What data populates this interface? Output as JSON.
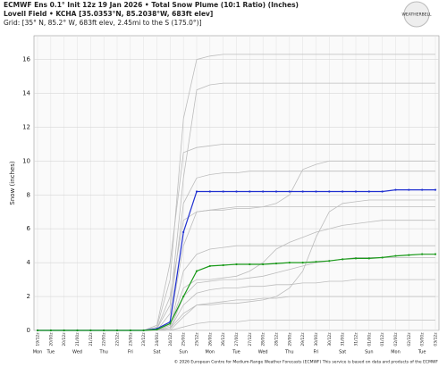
{
  "chart_data": {
    "type": "line",
    "title": "ECMWF Ens 0.1° Init 12z 19 Jan 2026 • Total Snow Plume (10:1 Ratio) (Inches)",
    "subtitle": "Lovell Field • KCHA [35.0353°N, 85.2038°W, 683ft elev]",
    "subtitle2": "Grid: [35° N, 85.2° W, 683ft elev, 2.45mi to the S (175.0°)]",
    "logo": "WEATHERBELL",
    "footer": "© 2026 European Centre for Medium-Range Weather Forecasts (ECMWF) This service is based on data and products of the ECMWF",
    "y_label": "Snow (inches)",
    "categories": [
      "19/12z",
      "20/00z",
      "20/12z",
      "21/00z",
      "21/12z",
      "22/00z",
      "22/12z",
      "23/00z",
      "23/12z",
      "24/00z",
      "24/12z",
      "25/00z",
      "25/12z",
      "26/00z",
      "26/12z",
      "27/00z",
      "27/12z",
      "28/00z",
      "28/12z",
      "29/00z",
      "29/12z",
      "30/00z",
      "30/12z",
      "31/00z",
      "31/12z",
      "01/00z",
      "01/12z",
      "02/00z",
      "02/12z",
      "03/00z",
      "03/12z"
    ],
    "day_labels": [
      "Mon",
      "Tue",
      null,
      "Wed",
      null,
      "Thu",
      null,
      "Fri",
      null,
      "Sat",
      null,
      "Sun",
      null,
      "Mon",
      null,
      "Tue",
      null,
      "Wed",
      null,
      "Thu",
      null,
      "Fri",
      null,
      "Sat",
      null,
      "Sun",
      null,
      "Mon",
      null,
      "Tue",
      null
    ],
    "ylim": [
      0,
      17.4
    ],
    "yticks": [
      0,
      2,
      4,
      6,
      8,
      10,
      12,
      14,
      16
    ],
    "grid": true,
    "series": [
      {
        "color": "#bdbdbd",
        "values": [
          0,
          0,
          0,
          0,
          0,
          0,
          0,
          0,
          0,
          0.2,
          3.0,
          12.5,
          16.0,
          16.2,
          16.3,
          16.3,
          16.3,
          16.3,
          16.3,
          16.3,
          16.3,
          16.3,
          16.3,
          16.3,
          16.3,
          16.3,
          16.3,
          16.3,
          16.3,
          16.3,
          16.3
        ]
      },
      {
        "color": "#bdbdbd",
        "values": [
          0,
          0,
          0,
          0,
          0,
          0,
          0,
          0,
          0,
          0.1,
          1.5,
          9.0,
          14.2,
          14.5,
          14.6,
          14.6,
          14.6,
          14.6,
          14.6,
          14.6,
          14.6,
          14.6,
          14.6,
          14.6,
          14.6,
          14.6,
          14.6,
          14.6,
          14.6,
          14.6,
          14.6
        ]
      },
      {
        "color": "#bdbdbd",
        "values": [
          0,
          0,
          0,
          0,
          0,
          0,
          0,
          0,
          0,
          0.3,
          4.0,
          10.5,
          10.8,
          10.9,
          11.0,
          11.0,
          11.0,
          11.0,
          11.0,
          11.0,
          11.0,
          11.0,
          11.0,
          11.0,
          11.0,
          11.0,
          11.0,
          11.0,
          11.0,
          11.0,
          11.0
        ]
      },
      {
        "color": "#bdbdbd",
        "values": [
          0,
          0,
          0,
          0,
          0,
          0,
          0,
          0,
          0,
          0.1,
          2.0,
          6.5,
          7.0,
          7.1,
          7.1,
          7.2,
          7.2,
          7.3,
          7.5,
          8.0,
          9.5,
          9.8,
          10.0,
          10.0,
          10.0,
          10.0,
          10.0,
          10.0,
          10.0,
          10.0,
          10.0
        ]
      },
      {
        "color": "#bdbdbd",
        "values": [
          0,
          0,
          0,
          0,
          0,
          0,
          0,
          0,
          0,
          0,
          1.0,
          7.5,
          9.0,
          9.2,
          9.3,
          9.3,
          9.4,
          9.4,
          9.4,
          9.4,
          9.4,
          9.4,
          9.4,
          9.4,
          9.4,
          9.4,
          9.4,
          9.4,
          9.4,
          9.4,
          9.4
        ]
      },
      {
        "color": "#bdbdbd",
        "values": [
          0,
          0,
          0,
          0,
          0,
          0,
          0,
          0,
          0,
          0,
          0.5,
          5.0,
          7.0,
          7.1,
          7.2,
          7.3,
          7.3,
          7.3,
          7.3,
          7.3,
          7.3,
          7.3,
          7.3,
          7.3,
          7.3,
          7.3,
          7.3,
          7.3,
          7.3,
          7.3,
          7.3
        ]
      },
      {
        "color": "#bdbdbd",
        "values": [
          0,
          0,
          0,
          0,
          0,
          0,
          0,
          0,
          0,
          0,
          0.3,
          2.5,
          3.0,
          3.0,
          3.1,
          3.2,
          3.5,
          4.0,
          4.8,
          5.2,
          5.5,
          5.8,
          6.0,
          6.2,
          6.3,
          6.4,
          6.5,
          6.5,
          6.5,
          6.5,
          6.5
        ]
      },
      {
        "color": "#bdbdbd",
        "values": [
          0,
          0,
          0,
          0,
          0,
          0,
          0,
          0,
          0,
          0,
          0.2,
          3.5,
          4.5,
          4.8,
          4.9,
          5.0,
          5.0,
          5.0,
          5.0,
          5.0,
          5.0,
          5.0,
          5.0,
          5.0,
          5.0,
          5.0,
          5.0,
          5.0,
          5.0,
          5.0,
          5.0
        ]
      },
      {
        "color": "#bdbdbd",
        "values": [
          0,
          0,
          0,
          0,
          0,
          0,
          0,
          0,
          0,
          0,
          0.1,
          2.0,
          2.8,
          2.9,
          3.0,
          3.0,
          3.1,
          3.2,
          3.4,
          3.6,
          3.8,
          4.0,
          4.1,
          4.2,
          4.3,
          4.3,
          4.3,
          4.3,
          4.3,
          4.3,
          4.3
        ]
      },
      {
        "color": "#bdbdbd",
        "values": [
          0,
          0,
          0,
          0,
          0,
          0,
          0,
          0,
          0,
          0,
          0.1,
          1.5,
          2.2,
          2.4,
          2.5,
          2.5,
          2.6,
          2.6,
          2.7,
          2.7,
          2.8,
          2.8,
          2.9,
          2.9,
          3.0,
          3.0,
          3.0,
          3.0,
          3.0,
          3.0,
          3.0
        ]
      },
      {
        "color": "#bdbdbd",
        "values": [
          0,
          0,
          0,
          0,
          0,
          0,
          0,
          0,
          0,
          0,
          0,
          0.8,
          1.5,
          1.6,
          1.7,
          1.8,
          1.8,
          1.9,
          1.9,
          2.0,
          2.0,
          2.0,
          2.0,
          2.0,
          2.0,
          2.0,
          2.0,
          2.0,
          2.0,
          2.0,
          2.0
        ]
      },
      {
        "color": "#bdbdbd",
        "values": [
          0,
          0,
          0,
          0,
          0,
          0,
          0,
          0,
          0,
          0,
          0,
          0.2,
          0.4,
          0.5,
          0.5,
          0.5,
          0.6,
          0.6,
          0.6,
          0.6,
          0.6,
          0.6,
          0.6,
          0.6,
          0.6,
          0.6,
          0.6,
          0.6,
          0.6,
          0.6,
          0.6
        ]
      },
      {
        "color": "#bdbdbd",
        "values": [
          0,
          0,
          0,
          0,
          0,
          0,
          0,
          0,
          0,
          0,
          0.1,
          1.0,
          1.5,
          1.5,
          1.6,
          1.6,
          1.7,
          1.8,
          2.0,
          2.5,
          3.5,
          5.5,
          7.0,
          7.5,
          7.6,
          7.7,
          7.7,
          7.7,
          7.7,
          7.7,
          7.7
        ]
      },
      {
        "color": "#1f2fd0",
        "markers": true,
        "values": [
          0,
          0,
          0,
          0,
          0,
          0,
          0,
          0,
          0,
          0.1,
          0.5,
          5.8,
          8.2,
          8.2,
          8.2,
          8.2,
          8.2,
          8.2,
          8.2,
          8.2,
          8.2,
          8.2,
          8.2,
          8.2,
          8.2,
          8.2,
          8.2,
          8.3,
          8.3,
          8.3,
          8.3
        ]
      },
      {
        "color": "#1a9a1a",
        "markers": true,
        "values": [
          0,
          0,
          0,
          0,
          0,
          0,
          0,
          0,
          0,
          0.05,
          0.4,
          2.0,
          3.5,
          3.8,
          3.85,
          3.9,
          3.9,
          3.9,
          3.95,
          4.0,
          4.0,
          4.05,
          4.1,
          4.2,
          4.25,
          4.25,
          4.3,
          4.4,
          4.45,
          4.5,
          4.5
        ]
      }
    ]
  }
}
